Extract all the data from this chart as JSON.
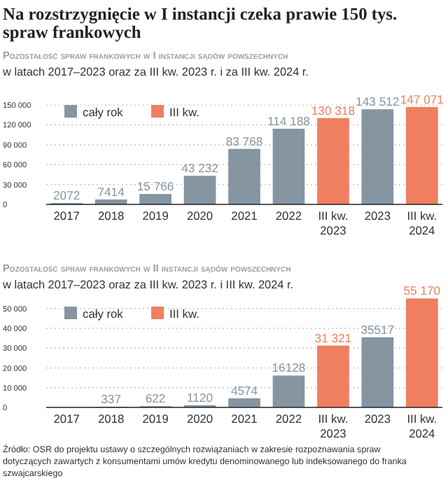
{
  "chart_data": [
    {
      "type": "bar",
      "title": "Na rozstrzygnięcie w I instancji czeka prawie 150 tys. spraw frankowych",
      "subtitle": "Pozostałość spraw frankowych w I instancji sądów powszechnych",
      "annotations": [
        "w latach 2017–2023 oraz za III kw. 2023 r. i za III kw. 2024 r."
      ],
      "categories": [
        "2017",
        "2018",
        "2019",
        "2020",
        "2021",
        "2022",
        "III kw. 2023",
        "2023",
        "III kw. 2024"
      ],
      "series": [
        {
          "name": "cały rok",
          "color": "#8595a2",
          "values": [
            2072,
            7414,
            15766,
            43232,
            83768,
            114188,
            null,
            143512,
            null
          ],
          "value_labels": [
            "2072",
            "7414",
            "15 766",
            "43 232",
            "83 768",
            "114 188",
            null,
            "143 512",
            null
          ]
        },
        {
          "name": "III kw.",
          "color": "#f07f5f",
          "values": [
            null,
            null,
            null,
            null,
            null,
            null,
            130318,
            null,
            147071
          ],
          "value_labels": [
            null,
            null,
            null,
            null,
            null,
            null,
            "130 318",
            null,
            "147 071"
          ]
        }
      ],
      "ylim": [
        0,
        150000
      ],
      "yticks": [
        {
          "value": 0,
          "label": "0"
        },
        {
          "value": 30000,
          "label": "30 000"
        },
        {
          "value": 60000,
          "label": "60 000"
        },
        {
          "value": 90000,
          "label": "90 000"
        },
        {
          "value": 120000,
          "label": "120 000"
        },
        {
          "value": 150000,
          "label": "150 000"
        }
      ],
      "grid": "y",
      "legend": "top left"
    },
    {
      "type": "bar",
      "title": "Pozostałość spraw frankowych w II instancji sądów powszechnych",
      "subtitle": "w latach 2017–2023 oraz za III kw. 2023 r. i III kw. 2024 r.",
      "annotations": [
        "Źródło: OSR do projektu ustawy o szczególnych rozwiązaniach w zakresie rozpoznawania spraw dotyczących zawartych z konsumentami umów kredytu denominowanego lub indeksowanego do franka szwajcarskiego"
      ],
      "categories": [
        "2017",
        "2018",
        "2019",
        "2020",
        "2021",
        "2022",
        "III kw. 2023",
        "2023",
        "III kw. 2024"
      ],
      "series": [
        {
          "name": "cały rok",
          "color": "#8595a2",
          "values": [
            null,
            337,
            622,
            1120,
            4574,
            16128,
            null,
            35517,
            null
          ],
          "value_labels": [
            null,
            "337",
            "622",
            "1120",
            "4574",
            "16128",
            null,
            "35517",
            null
          ]
        },
        {
          "name": "III kw.",
          "color": "#f07f5f",
          "values": [
            null,
            null,
            null,
            null,
            null,
            null,
            31321,
            null,
            55170
          ],
          "value_labels": [
            null,
            null,
            null,
            null,
            null,
            null,
            "31 321",
            null,
            "55 170"
          ]
        }
      ],
      "ylim": [
        0,
        56000
      ],
      "yticks": [
        {
          "value": 0,
          "label": "0"
        },
        {
          "value": 10000,
          "label": "10 000"
        },
        {
          "value": 20000,
          "label": "20 000"
        },
        {
          "value": 30000,
          "label": "30 000"
        },
        {
          "value": 40000,
          "label": "40 000"
        },
        {
          "value": 50000,
          "label": "50 000"
        }
      ],
      "grid": "y",
      "legend": "top left"
    }
  ]
}
